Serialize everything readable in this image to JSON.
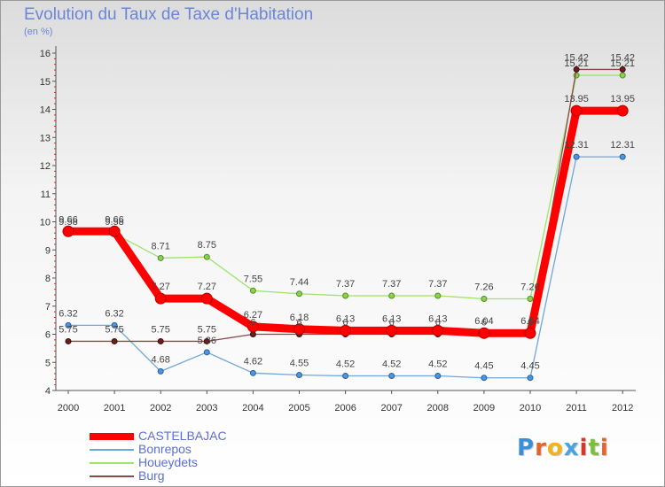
{
  "chart_data": {
    "type": "line",
    "title": "Evolution du Taux de Taxe d'Habitation",
    "subtitle": "(en %)",
    "x": [
      "2000",
      "2001",
      "2002",
      "2003",
      "2004",
      "2005",
      "2006",
      "2007",
      "2008",
      "2009",
      "2010",
      "2011",
      "2012"
    ],
    "ylim": [
      4,
      16
    ],
    "y_ticks": [
      "4",
      "5",
      "6",
      "7",
      "8",
      "9",
      "10",
      "11",
      "12",
      "13",
      "14",
      "15",
      "16"
    ],
    "grid": false,
    "legend_position": "bottom-left",
    "series": [
      {
        "name": "CASTELBAJAC",
        "color": "#ff0000",
        "values": [
          9.66,
          9.66,
          7.27,
          7.27,
          6.27,
          6.18,
          6.13,
          6.13,
          6.13,
          6.04,
          6.04,
          13.95,
          13.95
        ],
        "labels": [
          "9.66",
          "9.66",
          "7.27",
          "7.27",
          "6.27",
          "6.18",
          "6.13",
          "6.13",
          "6.13",
          "6.04",
          "6.04",
          "13.95",
          "13.95"
        ]
      },
      {
        "name": "Bonrepos",
        "color": "#5b9bd5",
        "values": [
          6.32,
          6.32,
          4.68,
          5.36,
          4.62,
          4.55,
          4.52,
          4.52,
          4.52,
          4.45,
          4.45,
          12.31,
          12.31
        ],
        "labels": [
          "6.32",
          "6.32",
          "4.68",
          "5.36",
          "4.62",
          "4.55",
          "4.52",
          "4.52",
          "4.52",
          "4.45",
          "4.45",
          "12.31",
          "12.31"
        ]
      },
      {
        "name": "Houeydets",
        "color": "#8fd14f",
        "values": [
          9.58,
          9.58,
          8.71,
          8.75,
          7.55,
          7.44,
          7.37,
          7.37,
          7.37,
          7.26,
          7.26,
          15.21,
          15.21
        ],
        "labels": [
          "9.58",
          "9.58",
          "8.71",
          "8.75",
          "7.55",
          "7.44",
          "7.37",
          "7.37",
          "7.37",
          "7.26",
          "7.26",
          "15.21",
          "15.21"
        ]
      },
      {
        "name": "Burg",
        "color": "#7a3434",
        "values": [
          5.75,
          5.75,
          5.75,
          5.75,
          6.0,
          6.0,
          6.0,
          6.0,
          6.0,
          6.0,
          6.0,
          15.42,
          15.42
        ],
        "labels": [
          "5.75",
          "5.75",
          "5.75",
          "5.75",
          "6",
          "6",
          "6",
          "6",
          "6",
          "6",
          "6",
          "15.42",
          "15.42"
        ]
      }
    ]
  },
  "logo": {
    "letters": [
      "P",
      "r",
      "o",
      "x",
      "i",
      "t",
      "i"
    ],
    "colors": [
      "#3b8fd9",
      "#e8622a",
      "#f2b21b",
      "#4aa3df",
      "#d9362b",
      "#7cbf3a",
      "#e8622a"
    ]
  }
}
